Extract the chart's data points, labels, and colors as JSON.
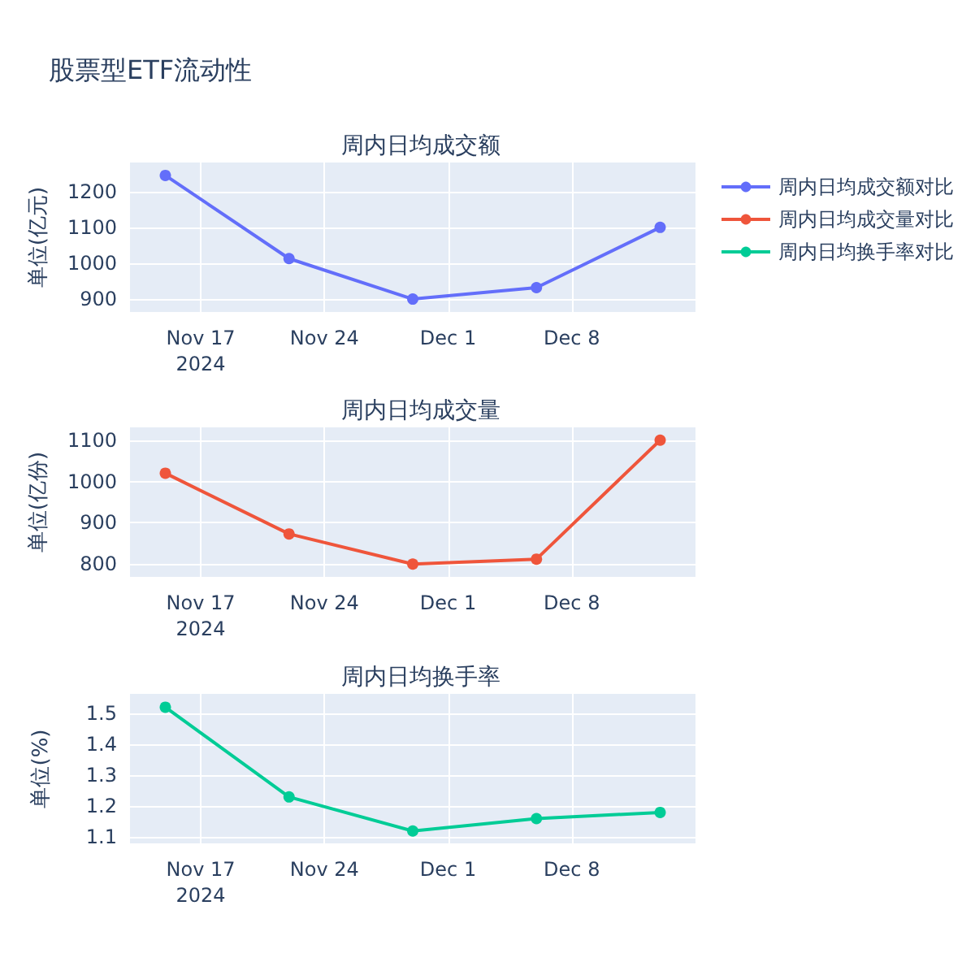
{
  "chart_data": [
    {
      "type": "line",
      "title": "周内日均成交额",
      "ylabel": "单位(亿元)",
      "annotations": [
        "股票型ETF流动性"
      ],
      "x": [
        "2024-11-15",
        "2024-11-22",
        "2024-11-29",
        "2024-12-06",
        "2024-12-13"
      ],
      "series": [
        {
          "name": "周内日均成交额对比",
          "color": "#636efa",
          "values": [
            1245,
            1013,
            900,
            932,
            1100
          ]
        }
      ],
      "xlim": [
        "2024-11-13",
        "2024-12-15"
      ],
      "xticks": [
        {
          "value": "2024-11-17",
          "label": "Nov 17\n2024"
        },
        {
          "value": "2024-11-24",
          "label": "Nov 24"
        },
        {
          "value": "2024-12-01",
          "label": "Dec 1"
        },
        {
          "value": "2024-12-08",
          "label": "Dec 8"
        }
      ],
      "ylim": [
        864,
        1281
      ],
      "yticks": [
        900,
        1000,
        1100,
        1200
      ],
      "grid": true,
      "legend": "top right",
      "marker": "circle"
    },
    {
      "type": "line",
      "title": "周内日均成交量",
      "ylabel": "单位(亿份)",
      "x": [
        "2024-11-15",
        "2024-11-22",
        "2024-11-29",
        "2024-12-06",
        "2024-12-13"
      ],
      "series": [
        {
          "name": "周内日均成交量对比",
          "color": "#ef553b",
          "values": [
            1020,
            873,
            800,
            812,
            1100
          ]
        }
      ],
      "xlim": [
        "2024-11-13",
        "2024-12-15"
      ],
      "xticks": [
        {
          "value": "2024-11-17",
          "label": "Nov 17\n2024"
        },
        {
          "value": "2024-11-24",
          "label": "Nov 24"
        },
        {
          "value": "2024-12-01",
          "label": "Dec 1"
        },
        {
          "value": "2024-12-08",
          "label": "Dec 8"
        }
      ],
      "ylim": [
        769,
        1131
      ],
      "yticks": [
        800,
        900,
        1000,
        1100
      ],
      "grid": true,
      "legend": "top right",
      "marker": "circle"
    },
    {
      "type": "line",
      "title": "周内日均换手率",
      "ylabel": "单位(%)",
      "x": [
        "2024-11-15",
        "2024-11-22",
        "2024-11-29",
        "2024-12-06",
        "2024-12-13"
      ],
      "series": [
        {
          "name": "周内日均换手率对比",
          "color": "#00cc96",
          "values": [
            1.52,
            1.23,
            1.12,
            1.16,
            1.18
          ]
        }
      ],
      "xlim": [
        "2024-11-13",
        "2024-12-15"
      ],
      "xticks": [
        {
          "value": "2024-11-17",
          "label": "Nov 17\n2024"
        },
        {
          "value": "2024-11-24",
          "label": "Nov 24"
        },
        {
          "value": "2024-12-01",
          "label": "Dec 1"
        },
        {
          "value": "2024-12-08",
          "label": "Dec 8"
        }
      ],
      "ylim": [
        1.08,
        1.563
      ],
      "yticks": [
        1.1,
        1.2,
        1.3,
        1.4,
        1.5
      ],
      "grid": true,
      "legend": "top right",
      "marker": "circle"
    }
  ]
}
